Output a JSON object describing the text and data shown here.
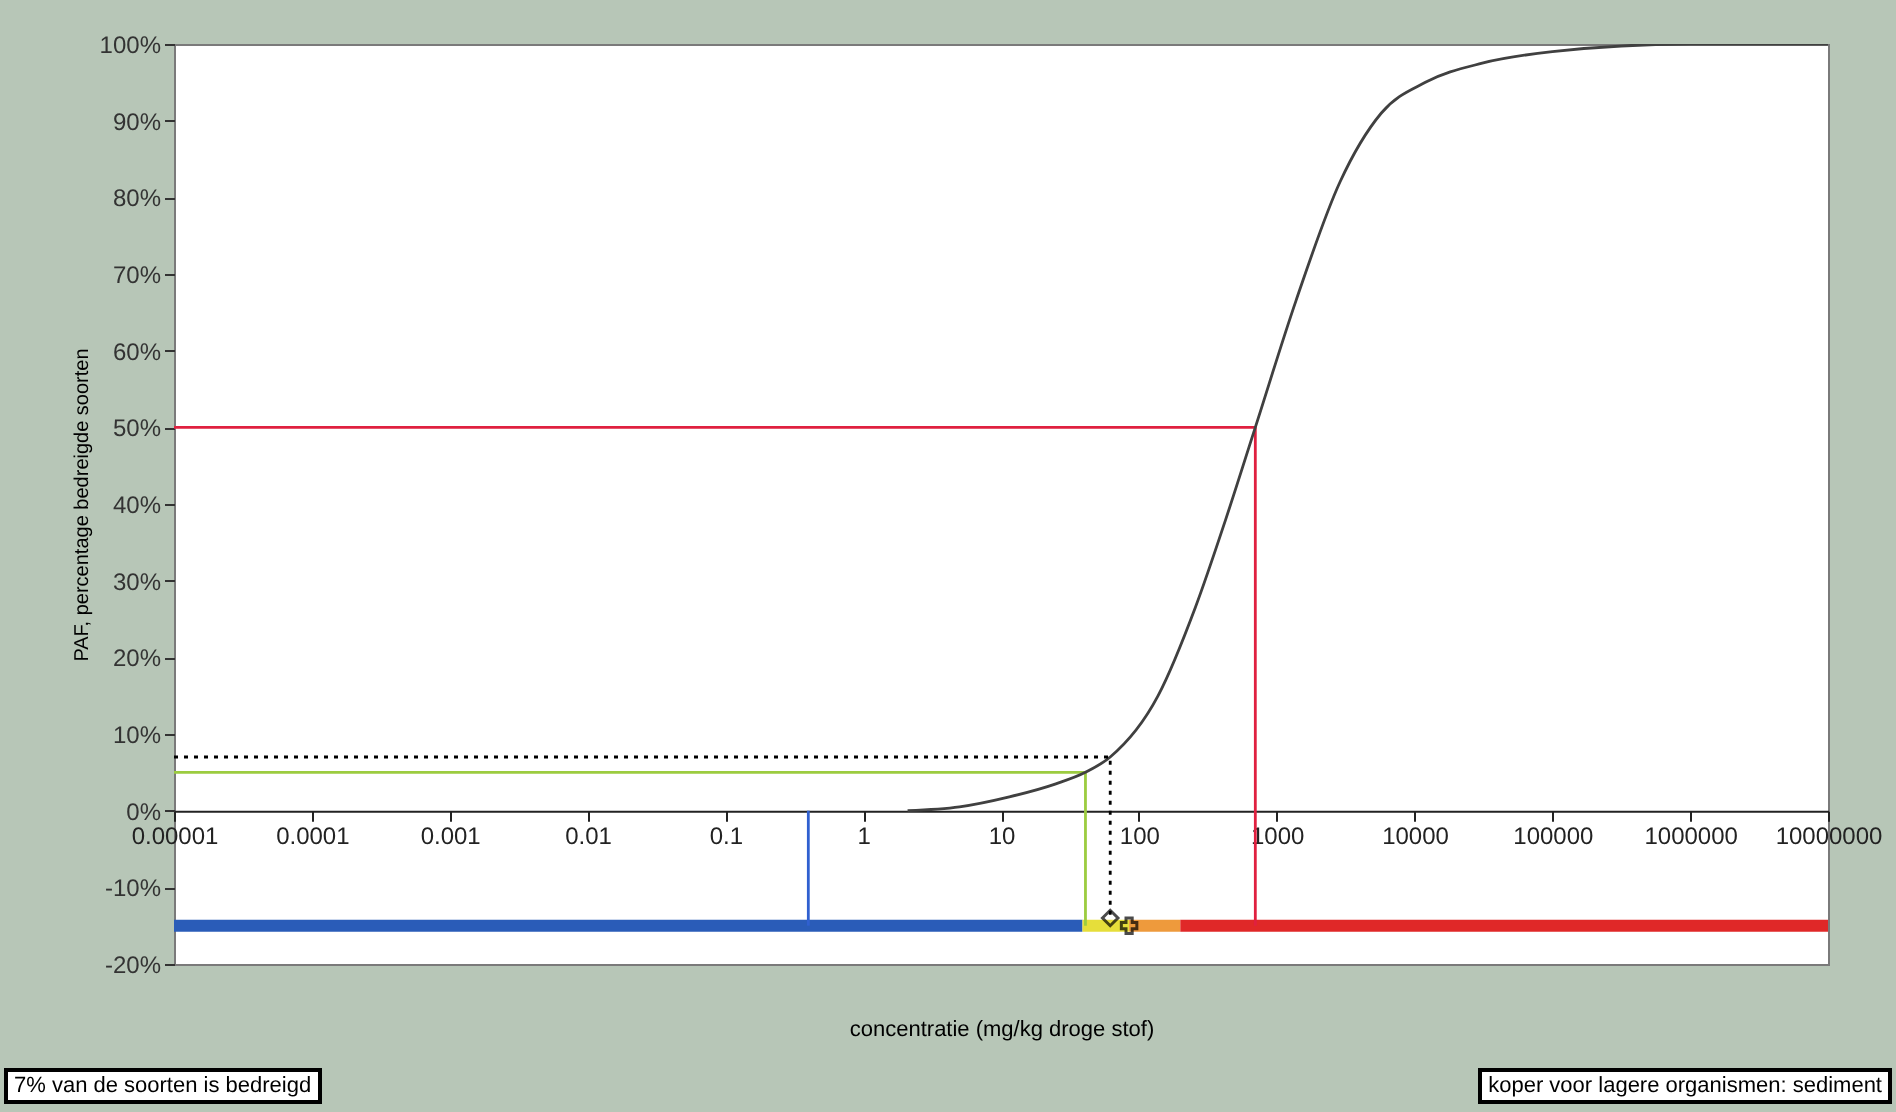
{
  "chart_data": {
    "type": "line",
    "xlabel": "concentratie (mg/kg droge stof)",
    "ylabel": "PAF, percentage bedreigde soorten",
    "log": "x",
    "grid": false,
    "legend": false,
    "xlim": [
      1e-05,
      10000000
    ],
    "ylim": [
      -20,
      100
    ],
    "xticks": [
      {
        "value": 1e-05,
        "label": "0.00001"
      },
      {
        "value": 0.0001,
        "label": "0.0001"
      },
      {
        "value": 0.001,
        "label": "0.001"
      },
      {
        "value": 0.01,
        "label": "0.01"
      },
      {
        "value": 0.1,
        "label": "0.1"
      },
      {
        "value": 1,
        "label": "1"
      },
      {
        "value": 10,
        "label": "10"
      },
      {
        "value": 100,
        "label": "100"
      },
      {
        "value": 1000,
        "label": "1000"
      },
      {
        "value": 10000,
        "label": "10000"
      },
      {
        "value": 100000,
        "label": "100000"
      },
      {
        "value": 1000000,
        "label": "1000000"
      },
      {
        "value": 10000000,
        "label": "10000000"
      }
    ],
    "yticks": [
      {
        "value": -20,
        "label": "-20%"
      },
      {
        "value": -10,
        "label": "-10%"
      },
      {
        "value": 0,
        "label": "0%"
      },
      {
        "value": 10,
        "label": "10%"
      },
      {
        "value": 20,
        "label": "20%"
      },
      {
        "value": 30,
        "label": "30%"
      },
      {
        "value": 40,
        "label": "40%"
      },
      {
        "value": 50,
        "label": "50%"
      },
      {
        "value": 60,
        "label": "60%"
      },
      {
        "value": 70,
        "label": "70%"
      },
      {
        "value": 80,
        "label": "80%"
      },
      {
        "value": 90,
        "label": "90%"
      },
      {
        "value": 100,
        "label": "100%"
      }
    ],
    "series": [
      {
        "color": "#2a5cb8",
        "x": [
          1e-05,
          39
        ],
        "values": [
          -15,
          -15
        ]
      },
      {
        "color": "#e6de3a",
        "x": [
          39,
          85
        ],
        "values": [
          -15,
          -15
        ]
      },
      {
        "color": "#ee9a3c",
        "x": [
          85,
          200
        ],
        "values": [
          -15,
          -15
        ]
      },
      {
        "color": "#e02828",
        "x": [
          200,
          10000000
        ],
        "values": [
          -15,
          -15
        ]
      },
      {
        "color": "#3060d0",
        "x": [
          0.4,
          0.4
        ],
        "values": [
          0,
          -15
        ]
      },
      {
        "color": "#e02040",
        "x": [
          1e-05,
          700,
          700
        ],
        "values": [
          50,
          50,
          -15
        ]
      },
      {
        "color": "#9ccc40",
        "x": [
          1e-05,
          41,
          41
        ],
        "values": [
          5,
          5,
          -15
        ]
      },
      {
        "color": "#000000",
        "line_style": "dotted",
        "x": [
          1e-05,
          62,
          62
        ],
        "values": [
          7,
          7,
          -14
        ]
      },
      {
        "color": "#404040",
        "x": [
          2.1,
          5,
          11.5,
          25,
          41,
          62,
          138,
          257,
          427,
          700,
          1380,
          2880,
          5750,
          12000,
          31000,
          100000,
          1000000,
          10000000
        ],
        "values": [
          0,
          0.5,
          1.8,
          3.5,
          5,
          7,
          15,
          26.5,
          38,
          50,
          66.5,
          82,
          91,
          95,
          97.5,
          99,
          100,
          100
        ]
      },
      {
        "type": "scatter",
        "color": "#000000",
        "marker": "diamond",
        "x": [
          62
        ],
        "values": [
          -14
        ]
      },
      {
        "type": "scatter",
        "color": "#000000",
        "marker": "cross",
        "x": [
          85
        ],
        "values": [
          -15
        ]
      }
    ],
    "annotations": [
      "7% van de soorten is bedreigd",
      "koper voor lagere organismen: sediment"
    ]
  }
}
